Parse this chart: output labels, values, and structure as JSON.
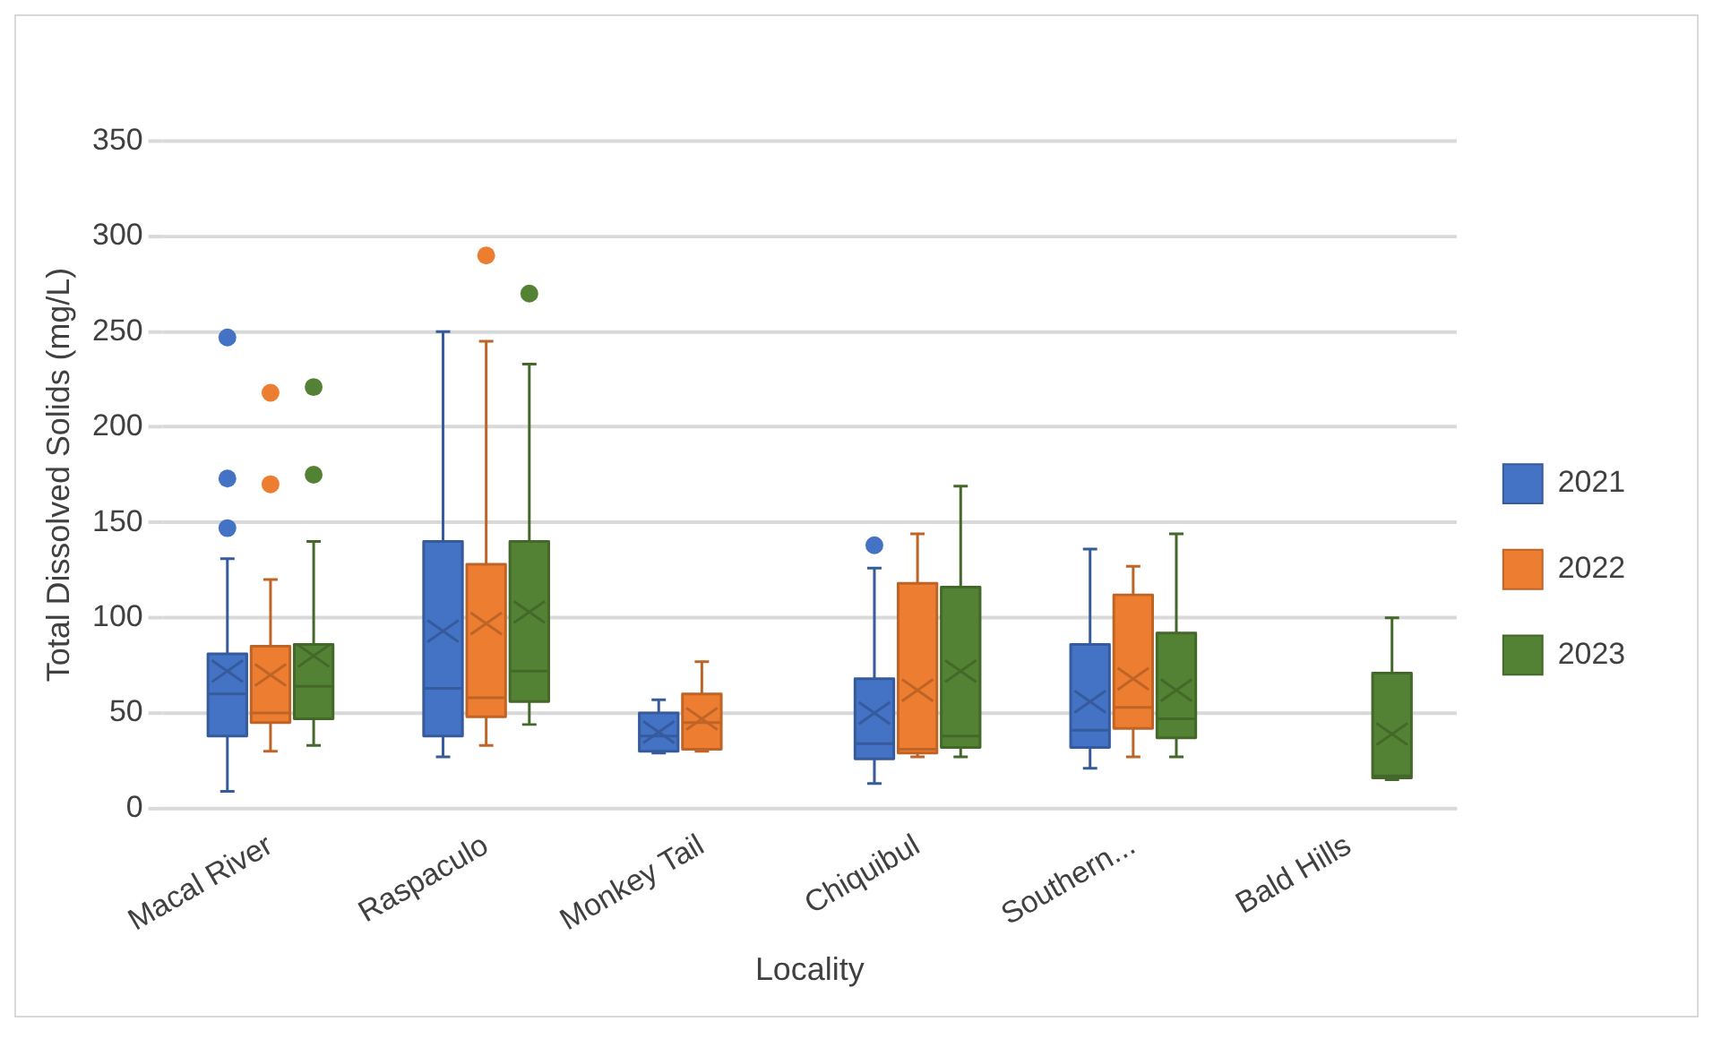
{
  "chart_data": {
    "type": "box",
    "xlabel": "Locality",
    "ylabel": "Total Dissolved Solids (mg/L)",
    "categories": [
      "Macal River",
      "Raspaculo",
      "Monkey Tail",
      "Chiquibul",
      "Southern...",
      "Bald Hills"
    ],
    "ylim": [
      0,
      350
    ],
    "yticks": [
      0,
      50,
      100,
      150,
      200,
      250,
      300,
      350
    ],
    "grid": "y",
    "legend": "right",
    "series": [
      {
        "name": "2021",
        "color": "#4472c4",
        "boxes": [
          {
            "low": 9,
            "q1": 38,
            "median": 60,
            "q3": 81,
            "high": 131,
            "mean": 72,
            "outliers": [
              147,
              173,
              247
            ]
          },
          {
            "low": 27,
            "q1": 38,
            "median": 63,
            "q3": 140,
            "high": 250,
            "mean": 93
          },
          {
            "low": 29,
            "q1": 30,
            "median": 38,
            "q3": 50,
            "high": 57,
            "mean": 40
          },
          {
            "low": 13,
            "q1": 26,
            "median": 34,
            "q3": 68,
            "high": 126,
            "mean": 50,
            "outliers": [
              138
            ]
          },
          {
            "low": 21,
            "q1": 32,
            "median": 41,
            "q3": 86,
            "high": 136,
            "mean": 56
          },
          null
        ]
      },
      {
        "name": "2022",
        "color": "#ed7d31",
        "boxes": [
          {
            "low": 30,
            "q1": 45,
            "median": 50,
            "q3": 85,
            "high": 120,
            "mean": 70,
            "outliers": [
              170,
              218
            ]
          },
          {
            "low": 33,
            "q1": 48,
            "median": 58,
            "q3": 128,
            "high": 245,
            "mean": 97,
            "outliers": [
              290
            ]
          },
          {
            "low": 30,
            "q1": 31,
            "median": 45,
            "q3": 60,
            "high": 77,
            "mean": 47
          },
          {
            "low": 27,
            "q1": 29,
            "median": 31,
            "q3": 118,
            "high": 144,
            "mean": 62
          },
          {
            "low": 27,
            "q1": 42,
            "median": 53,
            "q3": 112,
            "high": 127,
            "mean": 68
          },
          null
        ]
      },
      {
        "name": "2023",
        "color": "#548235",
        "boxes": [
          {
            "low": 33,
            "q1": 47,
            "median": 64,
            "q3": 86,
            "high": 140,
            "mean": 80,
            "outliers": [
              175,
              221
            ]
          },
          {
            "low": 44,
            "q1": 56,
            "median": 72,
            "q3": 140,
            "high": 233,
            "mean": 103,
            "outliers": [
              270
            ]
          },
          null,
          {
            "low": 27,
            "q1": 32,
            "median": 38,
            "q3": 116,
            "high": 169,
            "mean": 72
          },
          {
            "low": 27,
            "q1": 37,
            "median": 47,
            "q3": 92,
            "high": 144,
            "mean": 62
          },
          {
            "low": 15,
            "q1": 16,
            "median": 17,
            "q3": 71,
            "high": 100,
            "mean": 39
          }
        ]
      }
    ]
  }
}
